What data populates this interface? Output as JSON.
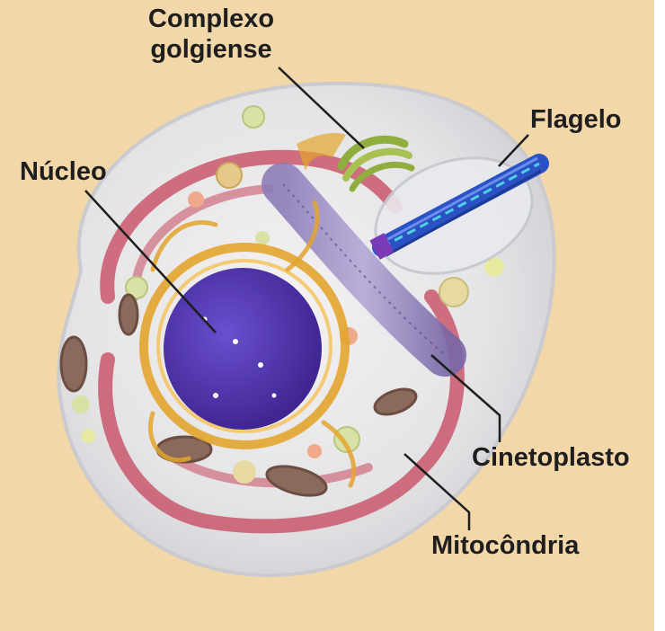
{
  "diagram": {
    "labels": {
      "golgi_line1": "Complexo",
      "golgi_line2": "golgiense",
      "flagelo": "Flagelo",
      "nucleo": "Núcleo",
      "cinetoplasto": "Cinetoplasto",
      "mitocondria": "Mitocôndria"
    },
    "colors": {
      "background": "#f2d7a8",
      "membrane": "#e6e8ee",
      "mitochondrion": "#c9576b",
      "nucleus": "#4a2fa0",
      "nuclear_envelope": "#e3a52e",
      "golgi": "#8fae3e",
      "flagellum": "#2b52c4",
      "kinetoplast": "#7f6ea8"
    }
  }
}
